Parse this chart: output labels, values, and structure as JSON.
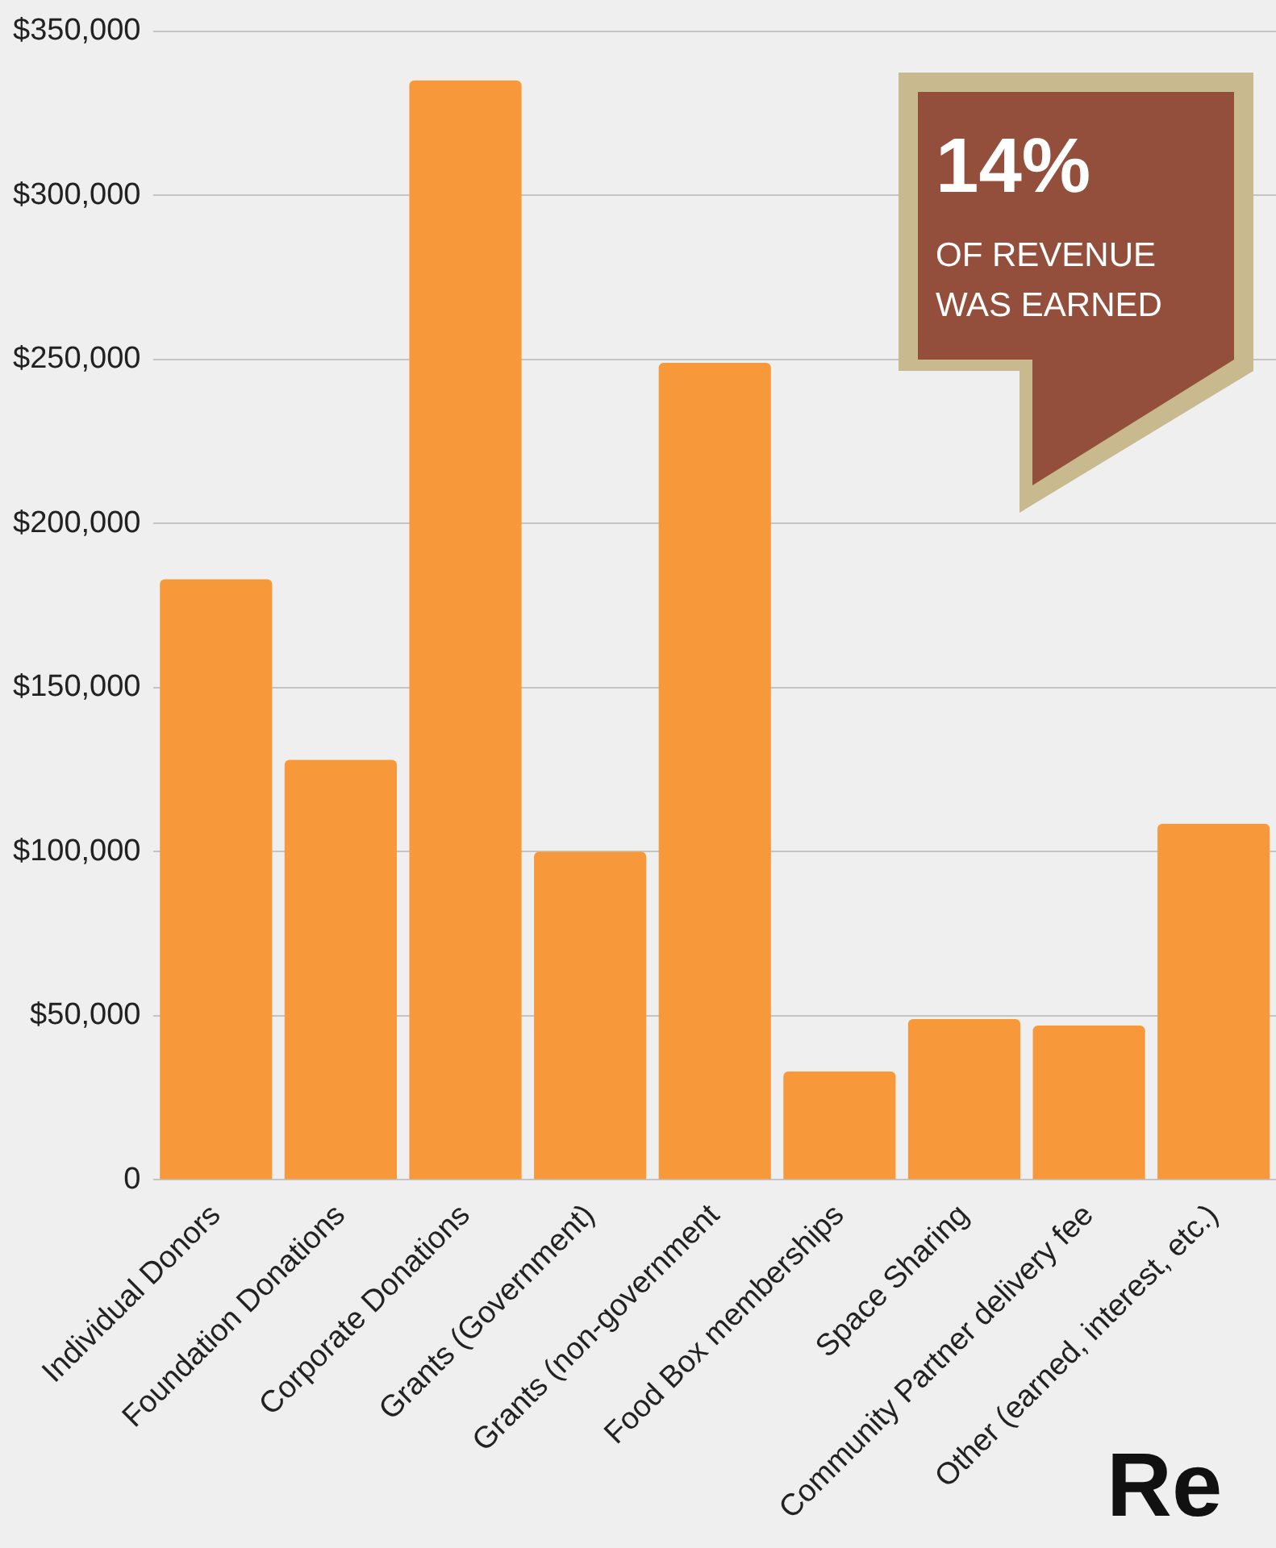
{
  "chart_data": {
    "type": "bar",
    "categories": [
      "Individual Donors",
      "Foundation Donations",
      "Corporate Donations",
      "Grants (Government)",
      "Grants (non-government",
      "Food Box memberships",
      "Space Sharing",
      "Community Partner delivery fee",
      "Other (earned, interest, etc.)"
    ],
    "values": [
      183000,
      128000,
      335000,
      100000,
      249000,
      33000,
      49000,
      47000,
      108500
    ],
    "color": "#f7993a",
    "ylim": [
      0,
      350000
    ],
    "yticks": [
      {
        "value": 0,
        "label": "0"
      },
      {
        "value": 50000,
        "label": "$50,000"
      },
      {
        "value": 100000,
        "label": "$100,000"
      },
      {
        "value": 150000,
        "label": "$150,000"
      },
      {
        "value": 200000,
        "label": "$200,000"
      },
      {
        "value": 250000,
        "label": "$250,000"
      },
      {
        "value": 300000,
        "label": "$300,000"
      },
      {
        "value": 350000,
        "label": "$350,000"
      }
    ],
    "grid": "y",
    "legend": false,
    "annotations": [
      "14%",
      "OF REVENUE WAS EARNED",
      "Re"
    ]
  }
}
